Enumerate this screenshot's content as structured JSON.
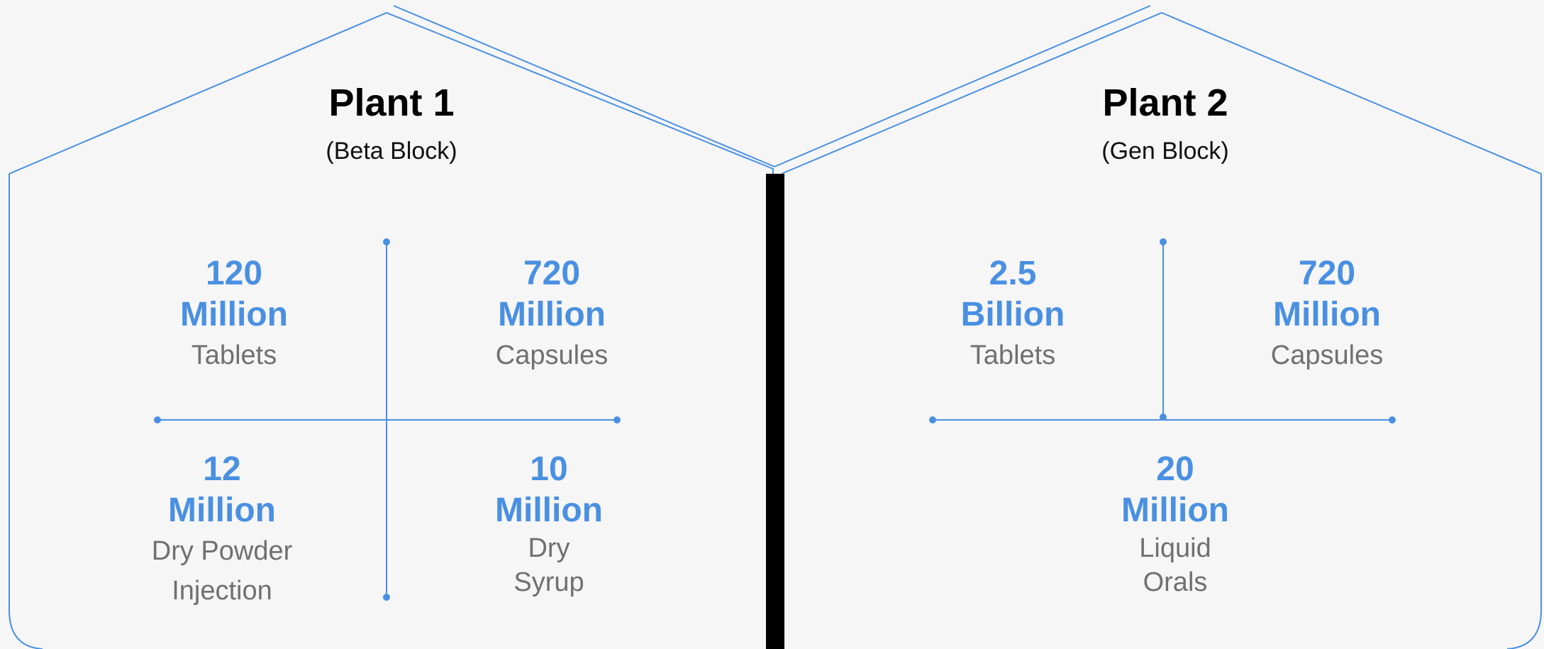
{
  "colors": {
    "line": "#4a90e2",
    "value": "#4a90e2",
    "label": "#707070",
    "divider": "#000000",
    "background": "#f6f6f6"
  },
  "plants": [
    {
      "title": "Plant 1",
      "subtitle": "(Beta Block)",
      "stats": [
        {
          "number": "120",
          "unit": "Million",
          "label": "Tablets"
        },
        {
          "number": "720",
          "unit": "Million",
          "label": "Capsules"
        },
        {
          "number": "12",
          "unit": "Million",
          "label_lines": [
            "Dry Powder",
            "Injection"
          ]
        },
        {
          "number": "10",
          "unit": "Million",
          "label_lines": [
            "Dry",
            "Syrup"
          ]
        }
      ]
    },
    {
      "title": "Plant 2",
      "subtitle": "(Gen Block)",
      "stats": [
        {
          "number": "2.5",
          "unit": "Billion",
          "label": "Tablets"
        },
        {
          "number": "720",
          "unit": "Million",
          "label": "Capsules"
        },
        {
          "number": "20",
          "unit": "Million",
          "label_lines": [
            "Liquid",
            "Orals"
          ]
        }
      ]
    }
  ]
}
